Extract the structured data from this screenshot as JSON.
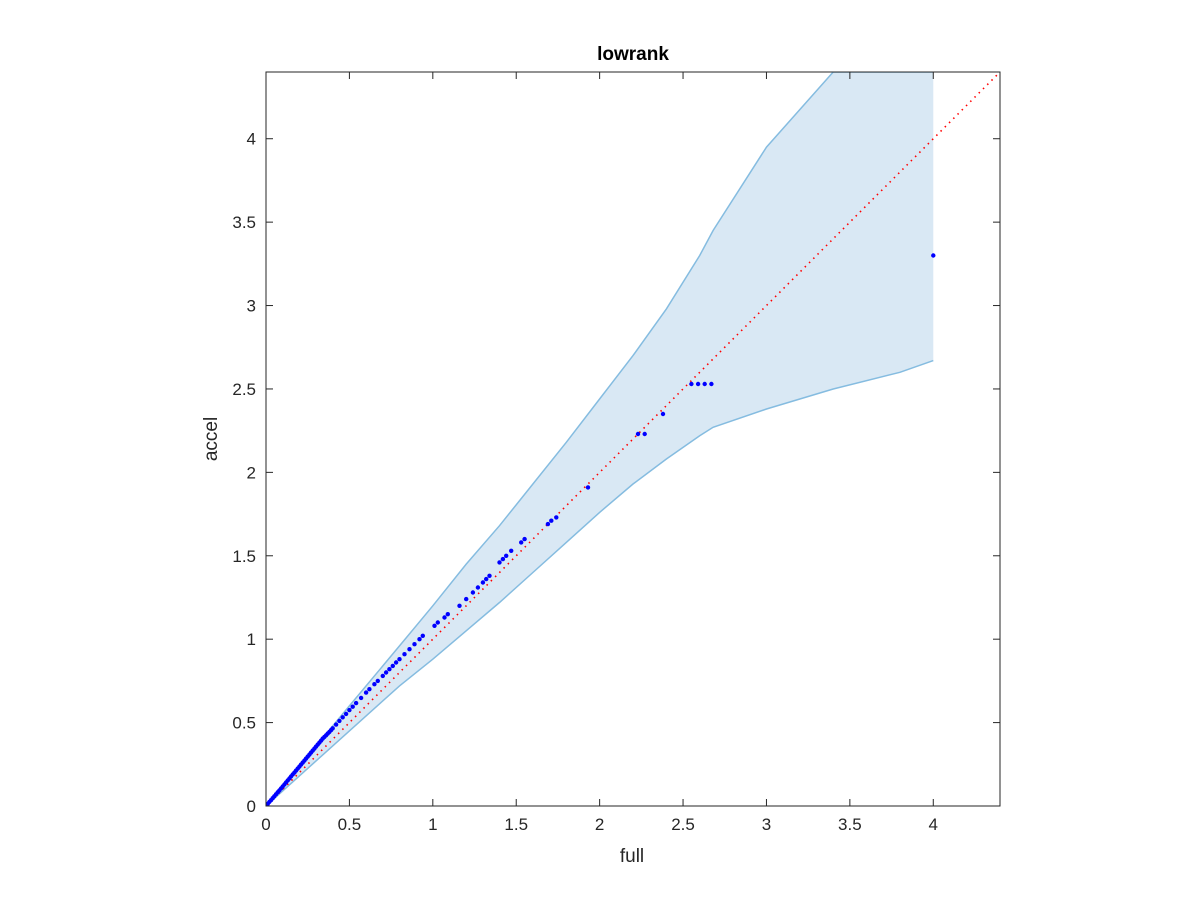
{
  "chart_data": {
    "type": "scatter",
    "title": "lowrank",
    "xlabel": "full",
    "ylabel": "accel",
    "xlim": [
      0,
      4.4
    ],
    "ylim": [
      0,
      4.4
    ],
    "xticks": [
      "0",
      "0.5",
      "1",
      "1.5",
      "2",
      "2.5",
      "3",
      "3.5",
      "4"
    ],
    "yticks": [
      "0",
      "0.5",
      "1",
      "1.5",
      "2",
      "2.5",
      "3",
      "3.5",
      "4"
    ],
    "grid": false,
    "colors": {
      "points": "#0000ff",
      "reference_line": "#ff0000",
      "band_fill": "#d9e8f4",
      "band_edge": "#85bce0",
      "axes": "#262626"
    },
    "reference_line": {
      "style": "dotted",
      "x": [
        0,
        4.4
      ],
      "y": [
        0,
        4.4
      ]
    },
    "band": {
      "x": [
        0,
        0.5,
        0.8,
        1.0,
        1.2,
        1.4,
        1.6,
        1.8,
        2.0,
        2.2,
        2.4,
        2.6,
        2.68,
        3.0,
        3.4,
        3.8,
        4.0
      ],
      "upper": [
        0,
        0.6,
        0.96,
        1.2,
        1.45,
        1.68,
        1.93,
        2.18,
        2.44,
        2.7,
        2.98,
        3.3,
        3.45,
        3.95,
        4.4,
        4.4,
        4.4
      ],
      "lower": [
        0,
        0.45,
        0.72,
        0.88,
        1.05,
        1.22,
        1.4,
        1.58,
        1.76,
        1.93,
        2.08,
        2.22,
        2.27,
        2.38,
        2.5,
        2.6,
        2.67
      ]
    },
    "series": [
      {
        "x": [
          0.005,
          0.01,
          0.02,
          0.03,
          0.04,
          0.05,
          0.06,
          0.07,
          0.08,
          0.09,
          0.1,
          0.11,
          0.12,
          0.13,
          0.14,
          0.15,
          0.16,
          0.17,
          0.18,
          0.19,
          0.2,
          0.21,
          0.22,
          0.23,
          0.24,
          0.25,
          0.26,
          0.27,
          0.28,
          0.29,
          0.3,
          0.31,
          0.32,
          0.33,
          0.34,
          0.35,
          0.36,
          0.37,
          0.38,
          0.39,
          0.4,
          0.42,
          0.44,
          0.46,
          0.48,
          0.5,
          0.52,
          0.54,
          0.57,
          0.6,
          0.62,
          0.65,
          0.67,
          0.7,
          0.72,
          0.74,
          0.76,
          0.78,
          0.8,
          0.83,
          0.86,
          0.89,
          0.92,
          0.94,
          1.01,
          1.03,
          1.07,
          1.09,
          1.16,
          1.2,
          1.24,
          1.27,
          1.3,
          1.32,
          1.34,
          1.4,
          1.42,
          1.44,
          1.47,
          1.53,
          1.55,
          1.69,
          1.71,
          1.74,
          1.93,
          2.23,
          2.27,
          2.38,
          2.55,
          2.59,
          2.63,
          2.67,
          4.0
        ],
        "y": [
          0.006,
          0.012,
          0.024,
          0.035,
          0.047,
          0.058,
          0.07,
          0.082,
          0.093,
          0.105,
          0.117,
          0.129,
          0.141,
          0.153,
          0.165,
          0.177,
          0.189,
          0.2,
          0.212,
          0.224,
          0.236,
          0.248,
          0.26,
          0.272,
          0.284,
          0.296,
          0.308,
          0.32,
          0.332,
          0.344,
          0.356,
          0.368,
          0.38,
          0.392,
          0.404,
          0.414,
          0.424,
          0.434,
          0.444,
          0.455,
          0.466,
          0.488,
          0.51,
          0.532,
          0.552,
          0.575,
          0.595,
          0.617,
          0.648,
          0.68,
          0.7,
          0.73,
          0.75,
          0.78,
          0.8,
          0.82,
          0.84,
          0.86,
          0.88,
          0.91,
          0.94,
          0.97,
          1.0,
          1.02,
          1.08,
          1.1,
          1.13,
          1.15,
          1.2,
          1.24,
          1.28,
          1.31,
          1.34,
          1.36,
          1.38,
          1.46,
          1.48,
          1.5,
          1.53,
          1.58,
          1.6,
          1.69,
          1.71,
          1.73,
          1.91,
          2.23,
          2.23,
          2.35,
          2.53,
          2.53,
          2.53,
          2.53,
          3.3
        ]
      }
    ]
  }
}
